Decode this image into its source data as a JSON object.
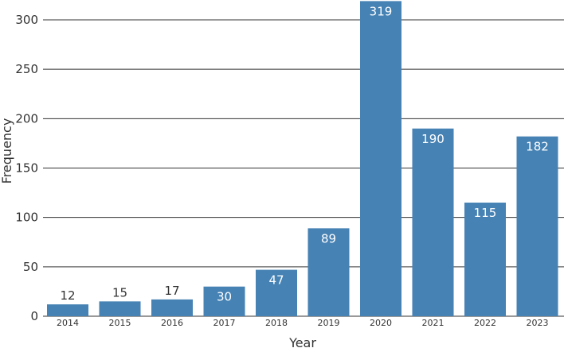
{
  "chart_data": {
    "type": "bar",
    "xlabel": "Year",
    "ylabel": "Frequency",
    "categories": [
      "2014",
      "2015",
      "2016",
      "2017",
      "2018",
      "2019",
      "2020",
      "2021",
      "2022",
      "2023"
    ],
    "values": [
      12,
      15,
      17,
      30,
      47,
      89,
      319,
      190,
      115,
      182
    ],
    "data_labels": [
      "12",
      "15",
      "17",
      "30",
      "47",
      "89",
      "319",
      "190",
      "115",
      "182"
    ],
    "ylim": [
      0,
      320
    ],
    "yticks": [
      0,
      50,
      100,
      150,
      200,
      250,
      300
    ],
    "ytick_labels": [
      "0",
      "50",
      "100",
      "150",
      "200",
      "250",
      "300"
    ],
    "grid": "horizontal",
    "legend": "none",
    "bar_color": "#4682B4",
    "label_inside_color": "#ffffff",
    "label_outside_color": "#333333",
    "gridline_color": "#333333"
  }
}
